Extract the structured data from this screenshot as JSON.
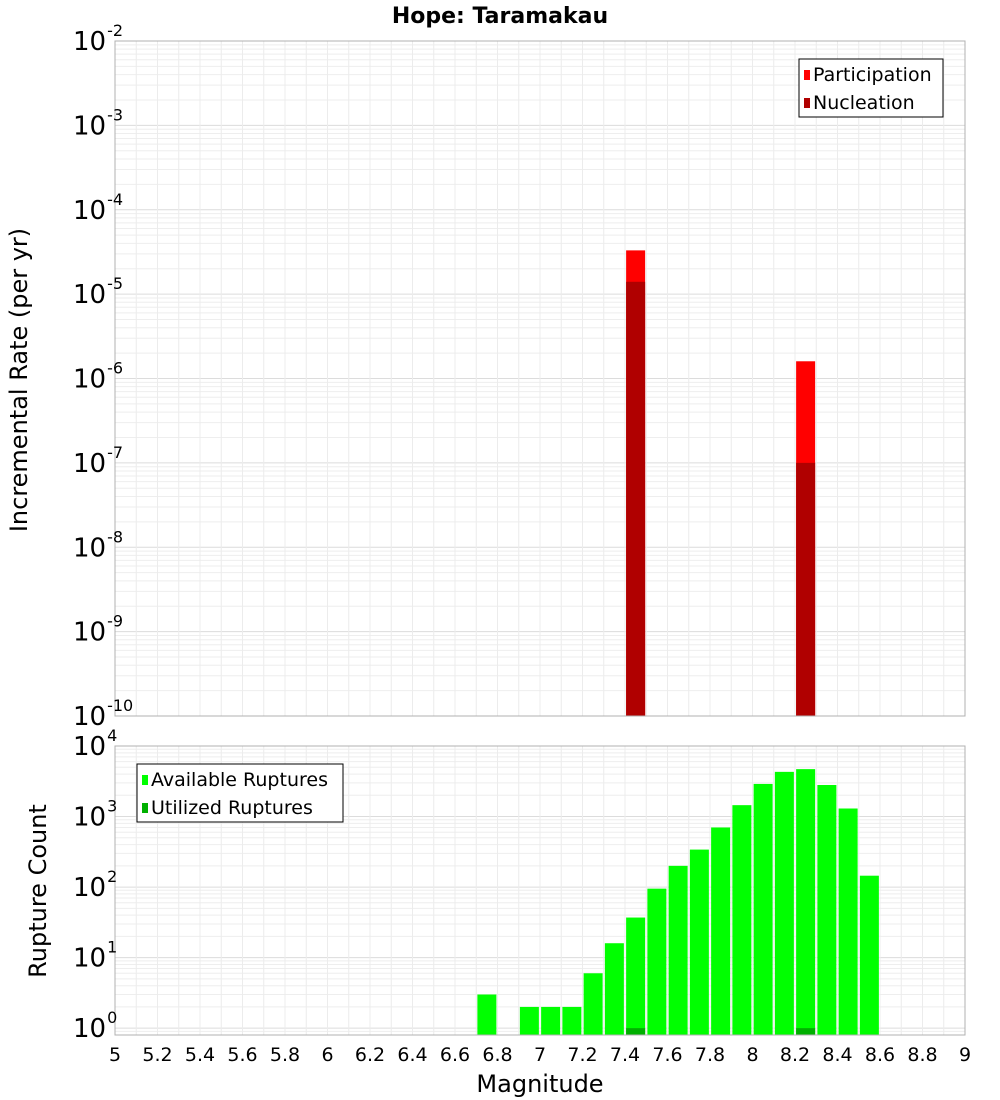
{
  "title": "Hope: Taramakau",
  "chart_data": [
    {
      "type": "bar",
      "name": "top",
      "ylabel": "Incremental Rate (per yr)",
      "yscale": "log",
      "ylim": [
        1e-10,
        0.01
      ],
      "ytick_exponents": [
        -10,
        -9,
        -8,
        -7,
        -6,
        -5,
        -4,
        -3,
        -2
      ],
      "xlim": [
        5,
        9
      ],
      "grid": true,
      "legend_position": "top-right",
      "series": [
        {
          "name": "Participation",
          "color": "#ff0000",
          "x": [
            7.45,
            8.25
          ],
          "values": [
            3.3e-05,
            1.6e-06
          ]
        },
        {
          "name": "Nucleation",
          "color": "#b00000",
          "x": [
            7.45,
            8.25
          ],
          "values": [
            1.4e-05,
            1e-07
          ]
        }
      ]
    },
    {
      "type": "bar",
      "name": "bottom",
      "ylabel": "Rupture Count",
      "yscale": "log",
      "ylim": [
        0.8,
        10000
      ],
      "ytick_exponents": [
        0,
        1,
        2,
        3,
        4
      ],
      "xlim": [
        5,
        9
      ],
      "xlabel": "Magnitude",
      "xticks": [
        "5",
        "5.2",
        "5.4",
        "5.6",
        "5.8",
        "6",
        "6.2",
        "6.4",
        "6.6",
        "6.8",
        "7",
        "7.2",
        "7.4",
        "7.6",
        "7.8",
        "8",
        "8.2",
        "8.4",
        "8.6",
        "8.8",
        "9"
      ],
      "grid": true,
      "legend_position": "top-left",
      "series": [
        {
          "name": "Available Ruptures",
          "color": "#00ff00",
          "x": [
            6.75,
            6.95,
            7.05,
            7.15,
            7.25,
            7.35,
            7.45,
            7.55,
            7.65,
            7.75,
            7.85,
            7.95,
            8.05,
            8.15,
            8.25,
            8.35,
            8.45,
            8.55
          ],
          "values": [
            3,
            2,
            2,
            2,
            6,
            16,
            37,
            95,
            200,
            340,
            700,
            1450,
            2900,
            4300,
            4700,
            2800,
            1300,
            145
          ]
        },
        {
          "name": "Utilized Ruptures",
          "color": "#00b000",
          "x": [
            7.45,
            8.25
          ],
          "values": [
            1,
            1
          ]
        }
      ]
    }
  ]
}
